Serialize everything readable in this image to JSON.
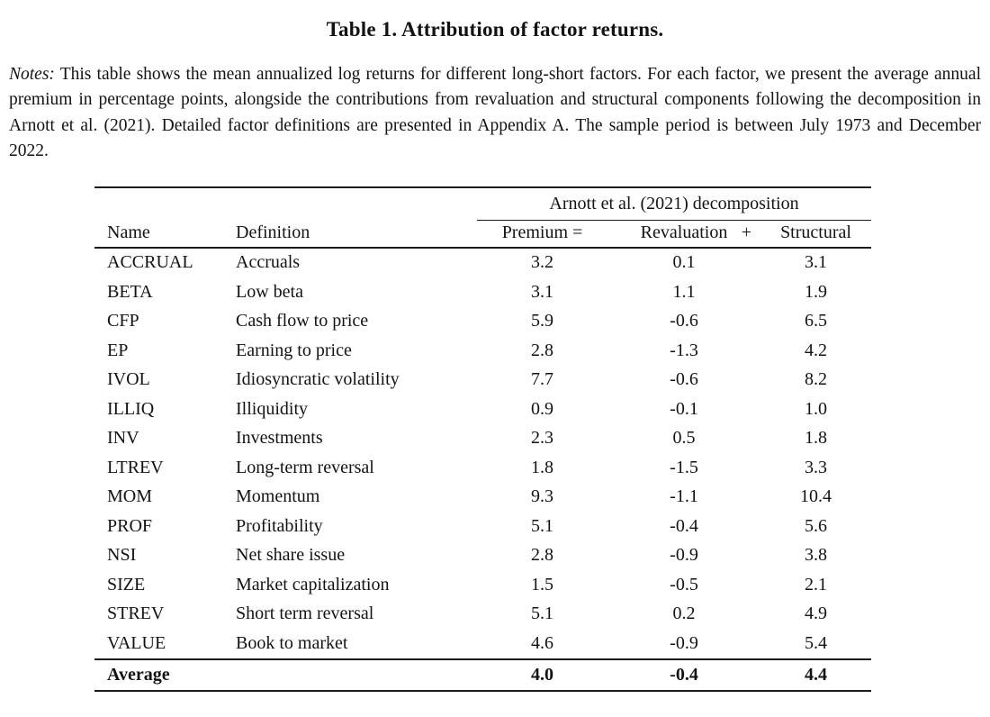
{
  "title": "Table 1. Attribution of factor returns.",
  "notes": {
    "label": "Notes:",
    "text": " This table shows the mean annualized log returns for different long-short factors. For each factor, we present the average annual premium in percentage points, alongside the contributions from revaluation and structural components following the decomposition in Arnott et al. (2021). Detailed factor definitions are presented in Appendix A. The sample period is between July 1973 and December 2022."
  },
  "table": {
    "spanner": "Arnott et al. (2021) decomposition",
    "columns": {
      "name": "Name",
      "definition": "Definition",
      "premium": "Premium =",
      "revaluation": "Revaluation",
      "plus": "+",
      "structural": "Structural"
    },
    "rows": [
      {
        "name": "ACCRUAL",
        "definition": "Accruals",
        "premium": "3.2",
        "revaluation": "0.1",
        "structural": "3.1"
      },
      {
        "name": "BETA",
        "definition": "Low beta",
        "premium": "3.1",
        "revaluation": "1.1",
        "structural": "1.9"
      },
      {
        "name": "CFP",
        "definition": "Cash flow to price",
        "premium": "5.9",
        "revaluation": "-0.6",
        "structural": "6.5"
      },
      {
        "name": "EP",
        "definition": "Earning to price",
        "premium": "2.8",
        "revaluation": "-1.3",
        "structural": "4.2"
      },
      {
        "name": "IVOL",
        "definition": "Idiosyncratic volatility",
        "premium": "7.7",
        "revaluation": "-0.6",
        "structural": "8.2"
      },
      {
        "name": "ILLIQ",
        "definition": "Illiquidity",
        "premium": "0.9",
        "revaluation": "-0.1",
        "structural": "1.0"
      },
      {
        "name": "INV",
        "definition": "Investments",
        "premium": "2.3",
        "revaluation": "0.5",
        "structural": "1.8"
      },
      {
        "name": "LTREV",
        "definition": "Long-term reversal",
        "premium": "1.8",
        "revaluation": "-1.5",
        "structural": "3.3"
      },
      {
        "name": "MOM",
        "definition": "Momentum",
        "premium": "9.3",
        "revaluation": "-1.1",
        "structural": "10.4"
      },
      {
        "name": "PROF",
        "definition": "Profitability",
        "premium": "5.1",
        "revaluation": "-0.4",
        "structural": "5.6"
      },
      {
        "name": "NSI",
        "definition": "Net share issue",
        "premium": "2.8",
        "revaluation": "-0.9",
        "structural": "3.8"
      },
      {
        "name": "SIZE",
        "definition": "Market capitalization",
        "premium": "1.5",
        "revaluation": "-0.5",
        "structural": "2.1"
      },
      {
        "name": "STREV",
        "definition": "Short term reversal",
        "premium": "5.1",
        "revaluation": "0.2",
        "structural": "4.9"
      },
      {
        "name": "VALUE",
        "definition": "Book to market",
        "premium": "4.6",
        "revaluation": "-0.9",
        "structural": "5.4"
      }
    ],
    "average": {
      "label": "Average",
      "premium": "4.0",
      "revaluation": "-0.4",
      "structural": "4.4"
    }
  }
}
